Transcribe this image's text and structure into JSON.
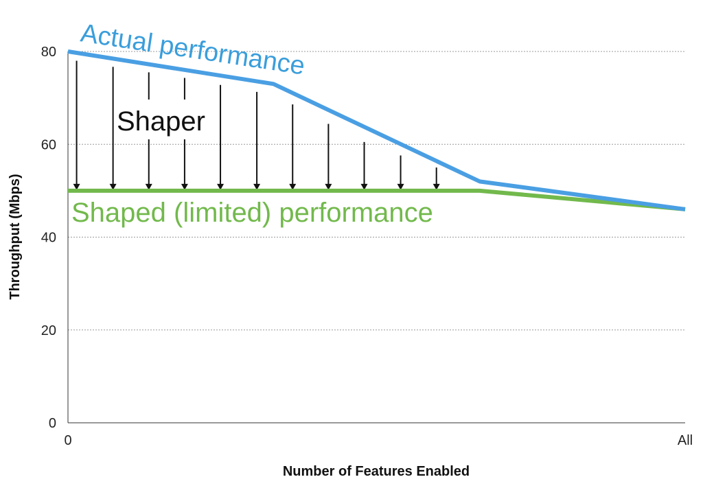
{
  "chart_data": {
    "type": "line",
    "xlabel": "Number of Features Enabled",
    "ylabel": "Throughput (Mbps)",
    "x_ticks": [
      "0",
      "All"
    ],
    "y_ticks": [
      0,
      20,
      40,
      60,
      80
    ],
    "xlim": [
      0,
      1
    ],
    "ylim": [
      0,
      80
    ],
    "grid": "horizontal dotted",
    "series": [
      {
        "name": "Actual performance",
        "color": "#4a9fe3",
        "points": [
          [
            0,
            80
          ],
          [
            0.333,
            73
          ],
          [
            0.667,
            52
          ],
          [
            1,
            46
          ]
        ]
      },
      {
        "name": "Shaped (limited) performance",
        "color": "#72b94c",
        "points": [
          [
            0,
            50
          ],
          [
            0.667,
            50
          ],
          [
            1,
            46
          ]
        ]
      }
    ],
    "shaper": {
      "label": "Shaper",
      "target_y": 50,
      "arrows": [
        {
          "x": 0.014,
          "top": 78
        },
        {
          "x": 0.073,
          "top": 76.7
        },
        {
          "x": 0.131,
          "top": 75.5
        },
        {
          "x": 0.189,
          "top": 74.3
        },
        {
          "x": 0.247,
          "top": 72.8
        },
        {
          "x": 0.306,
          "top": 71.3
        },
        {
          "x": 0.364,
          "top": 68.6
        },
        {
          "x": 0.422,
          "top": 64.4
        },
        {
          "x": 0.48,
          "top": 60.5
        },
        {
          "x": 0.539,
          "top": 57.6
        },
        {
          "x": 0.597,
          "top": 55
        }
      ]
    }
  }
}
